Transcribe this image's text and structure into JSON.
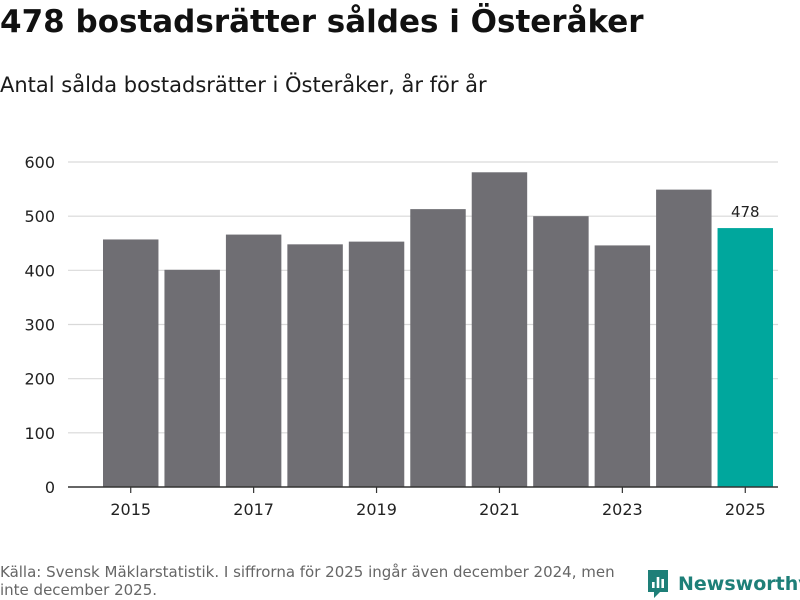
{
  "header": {
    "title": "478 bostadsrätter såldes i Österåker",
    "subtitle": "Antal sålda bostadsrätter i Österåker, år för år"
  },
  "footer": {
    "source": "Källa: Svensk Mäklarstatistik. I siffrorna för 2025 ingår även december 2024, men inte december 2025.",
    "brand": "Newsworthy",
    "brand_icon": "newsworthy-logo-icon"
  },
  "colors": {
    "bar": "#6f6e73",
    "highlight": "#00a79d",
    "grid": "#d9d9d9",
    "axis": "#333333",
    "brand": "#1e7f78"
  },
  "chart_data": {
    "type": "bar",
    "title": "Antal sålda bostadsrätter i Österåker, år för år",
    "xlabel": "",
    "ylabel": "",
    "categories": [
      "2015",
      "2016",
      "2017",
      "2018",
      "2019",
      "2020",
      "2021",
      "2022",
      "2023",
      "2024",
      "2025"
    ],
    "values": [
      457,
      401,
      466,
      448,
      453,
      513,
      581,
      500,
      446,
      549,
      478
    ],
    "x_tick_labels": [
      "2015",
      "2017",
      "2019",
      "2021",
      "2023",
      "2025"
    ],
    "y_ticks": [
      0,
      100,
      200,
      300,
      400,
      500,
      600
    ],
    "ylim": [
      0,
      600
    ],
    "grid": true,
    "highlight_category": "2025",
    "data_labels": [
      {
        "category": "2025",
        "text": "478"
      }
    ]
  }
}
